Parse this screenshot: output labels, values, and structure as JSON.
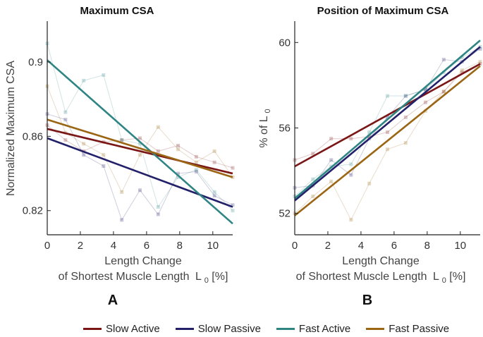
{
  "chart_data": [
    {
      "type": "line",
      "title": "Maximum CSA",
      "panel_label": "A",
      "xlabel_line1": "Length Change",
      "xlabel_line2": "of Shortest Muscle Length",
      "xlabel_symbol": "L",
      "xlabel_sub": "0",
      "xlabel_suffix": "[%]",
      "ylabel": "Normalized Maximum CSA",
      "xlim": [
        0,
        11.2
      ],
      "ylim": [
        0.807,
        0.922
      ],
      "xticks": [
        0,
        2,
        4,
        6,
        8,
        10
      ],
      "xtick_labels": [
        "0",
        "2",
        "4",
        "6",
        "8",
        "10"
      ],
      "yticks": [
        0.82,
        0.86,
        0.9
      ],
      "ytick_labels": [
        "0.82",
        "0.86",
        "0.9"
      ],
      "series": [
        {
          "name": "Slow Active",
          "x": [
            0,
            1.1,
            2.2,
            3.4,
            4.5,
            5.6,
            6.7,
            7.9,
            9.0,
            10.1,
            11.2
          ],
          "values": [
            0.866,
            0.858,
            0.852,
            0.857,
            0.858,
            0.859,
            0.852,
            0.855,
            0.849,
            0.846,
            0.843
          ],
          "fit": [
            0.864,
            0.84
          ]
        },
        {
          "name": "Slow Passive",
          "x": [
            0,
            1.1,
            2.2,
            3.4,
            4.5,
            5.6,
            6.7,
            7.9,
            9.0,
            10.1,
            11.2
          ],
          "values": [
            0.872,
            0.869,
            0.85,
            0.844,
            0.815,
            0.831,
            0.818,
            0.84,
            0.841,
            0.828,
            0.823
          ],
          "fit": [
            0.859,
            0.822
          ]
        },
        {
          "name": "Fast Active",
          "x": [
            0,
            1.1,
            2.2,
            3.4,
            4.5,
            5.6,
            6.7,
            7.9,
            9.0,
            10.1,
            11.2
          ],
          "values": [
            0.91,
            0.873,
            0.89,
            0.893,
            0.858,
            0.856,
            0.822,
            0.838,
            0.842,
            0.83,
            0.82
          ],
          "fit": [
            0.901,
            0.813
          ]
        },
        {
          "name": "Fast Passive",
          "x": [
            0,
            1.1,
            2.2,
            3.4,
            4.5,
            5.6,
            6.7,
            7.9,
            9.0,
            10.1,
            11.2
          ],
          "values": [
            0.887,
            0.862,
            0.856,
            0.85,
            0.83,
            0.85,
            0.865,
            0.853,
            0.846,
            0.852,
            0.838
          ],
          "fit": [
            0.869,
            0.838
          ]
        }
      ]
    },
    {
      "type": "line",
      "title": "Position of Maximum CSA",
      "panel_label": "B",
      "xlabel_line1": "Length Change",
      "xlabel_line2": "of Shortest Muscle Length",
      "xlabel_symbol": "L",
      "xlabel_sub": "0",
      "xlabel_suffix": "[%]",
      "ylabel": "% of L",
      "ylabel_sub": "0",
      "xlim": [
        0,
        11.2
      ],
      "ylim": [
        51.0,
        61.0
      ],
      "xticks": [
        0,
        2,
        4,
        6,
        8,
        10
      ],
      "xtick_labels": [
        "0",
        "2",
        "4",
        "6",
        "8",
        "10"
      ],
      "yticks": [
        52,
        56,
        60
      ],
      "ytick_labels": [
        "52",
        "56",
        "60"
      ],
      "series": [
        {
          "name": "Slow Active",
          "x": [
            0,
            1.1,
            2.2,
            3.4,
            4.5,
            5.6,
            6.7,
            7.9,
            9.0,
            10.1,
            11.2
          ],
          "values": [
            54.5,
            54.8,
            55.5,
            55.5,
            55.6,
            55.8,
            56.5,
            57.2,
            57.7,
            58.6,
            59.0
          ],
          "fit": [
            54.2,
            59.0
          ]
        },
        {
          "name": "Slow Passive",
          "x": [
            0,
            1.1,
            2.2,
            3.4,
            4.5,
            5.6,
            6.7,
            7.9,
            9.0,
            10.1,
            11.2
          ],
          "values": [
            53.2,
            53.3,
            54.5,
            53.8,
            55.5,
            56.5,
            57.5,
            57.8,
            59.2,
            59.1,
            59.7
          ],
          "fit": [
            52.6,
            59.8
          ]
        },
        {
          "name": "Fast Active",
          "x": [
            0,
            1.1,
            2.2,
            3.4,
            4.5,
            5.6,
            6.7,
            7.9,
            9.0,
            10.1,
            11.2
          ],
          "values": [
            52.8,
            53.6,
            54.2,
            54.3,
            55.8,
            57.5,
            57.5,
            57.8,
            58.6,
            59.3,
            59.8
          ],
          "fit": [
            52.7,
            60.1
          ]
        },
        {
          "name": "Fast Passive",
          "x": [
            0,
            1.1,
            2.2,
            3.4,
            4.5,
            5.6,
            6.7,
            7.9,
            9.0,
            10.1,
            11.2
          ],
          "values": [
            52.0,
            52.8,
            53.5,
            51.7,
            53.4,
            55.0,
            55.3,
            56.8,
            57.7,
            58.7,
            59.1
          ],
          "fit": [
            51.9,
            58.9
          ]
        }
      ]
    }
  ],
  "legend": {
    "items": [
      {
        "label": "Slow Active",
        "color": "#7a1616"
      },
      {
        "label": "Slow Passive",
        "color": "#23206a"
      },
      {
        "label": "Fast Active",
        "color": "#2f8484"
      },
      {
        "label": "Fast Passive",
        "color": "#9a6614"
      }
    ]
  }
}
